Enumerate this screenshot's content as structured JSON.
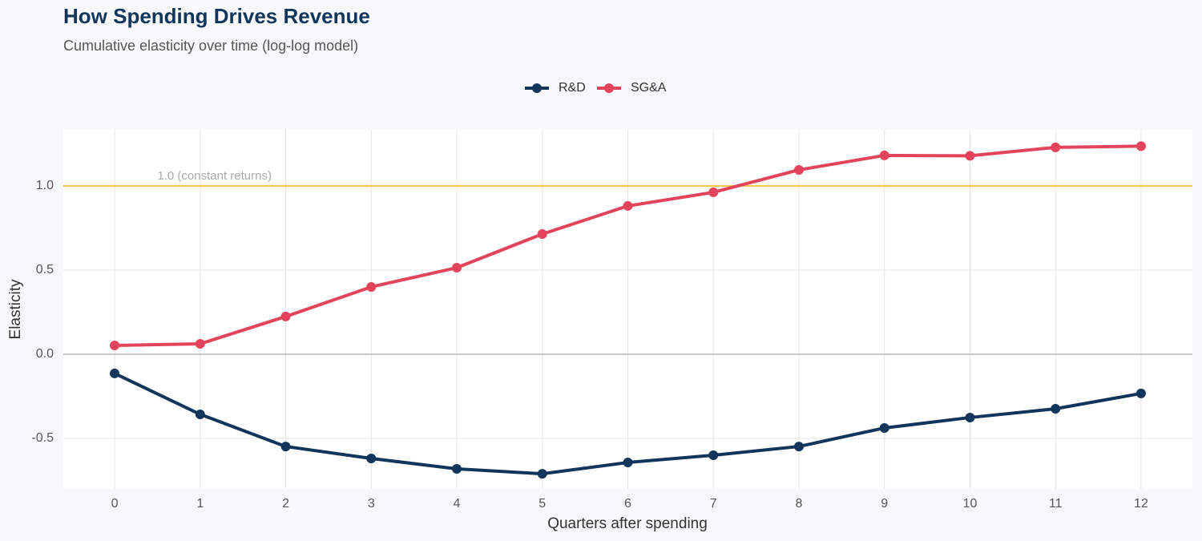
{
  "chart_data": {
    "type": "line",
    "title": "How Spending Drives Revenue",
    "subtitle": "Cumulative elasticity over time (log-log model)",
    "x_label": "Quarters after spending",
    "y_label": "Elasticity",
    "x": [
      0,
      1,
      2,
      3,
      4,
      5,
      6,
      7,
      8,
      9,
      10,
      11,
      12
    ],
    "series": [
      {
        "name": "R&D",
        "color": "#12355b",
        "values": [
          -0.114,
          -0.357,
          -0.548,
          -0.619,
          -0.681,
          -0.71,
          -0.643,
          -0.6,
          -0.548,
          -0.438,
          -0.376,
          -0.324,
          -0.233
        ]
      },
      {
        "name": "SG&A",
        "color": "#e2445c",
        "values": [
          0.052,
          0.062,
          0.224,
          0.4,
          0.514,
          0.714,
          0.881,
          0.962,
          1.095,
          1.181,
          1.179,
          1.229,
          1.236
        ]
      }
    ],
    "xlim": [
      -0.6,
      12.6
    ],
    "ylim": [
      -0.8,
      1.333
    ],
    "xticks": [
      0,
      1,
      2,
      3,
      4,
      5,
      6,
      7,
      8,
      9,
      10,
      11,
      12
    ],
    "yticks": [
      {
        "value": -0.5,
        "label": "-0.5"
      },
      {
        "value": 0,
        "label": "0.0"
      },
      {
        "value": 0.5,
        "label": "0.5"
      },
      {
        "value": 1,
        "label": "1.0"
      }
    ],
    "grid": true,
    "zero_line": true,
    "legend_position": "top",
    "reference_line": {
      "value": 1,
      "label": "1.0 (constant returns)",
      "color": "#f2c94c"
    }
  }
}
